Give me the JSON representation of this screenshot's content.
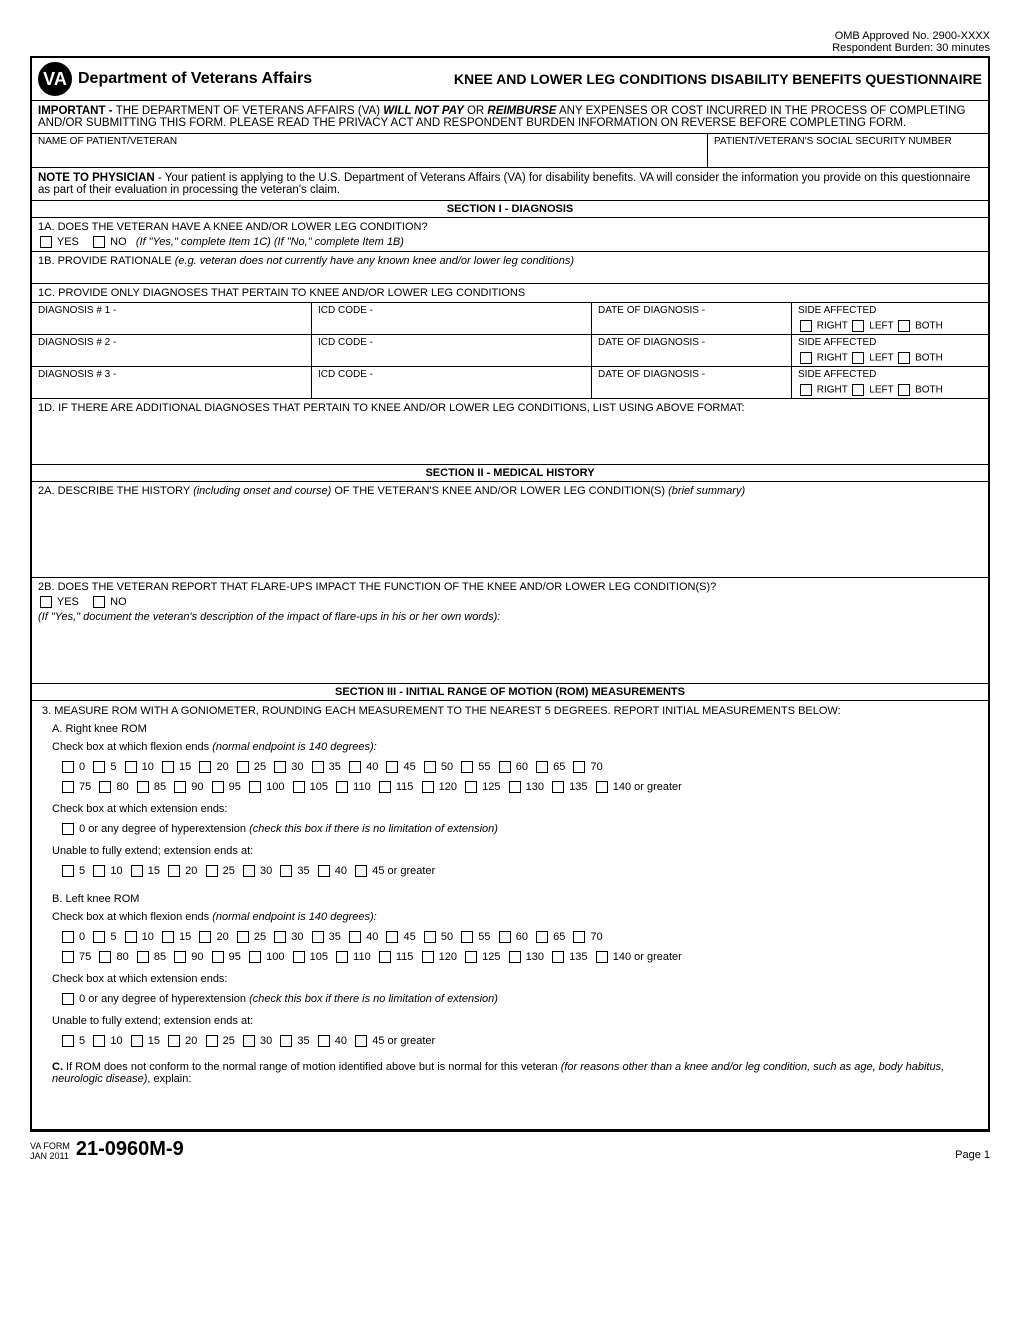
{
  "omb": {
    "approved": "OMB Approved No. 2900-XXXX",
    "burden": "Respondent Burden: 30 minutes"
  },
  "header": {
    "dept": "Department of Veterans Affairs",
    "title": "KNEE AND LOWER LEG CONDITIONS DISABILITY BENEFITS QUESTIONNAIRE"
  },
  "important": {
    "label": "IMPORTANT - ",
    "part1": "THE DEPARTMENT OF VETERANS AFFAIRS (VA) ",
    "bold1": "WILL NOT PAY",
    "or": " OR ",
    "bold2": "REIMBURSE",
    "part2": " ANY EXPENSES OR COST INCURRED IN THE PROCESS OF COMPLETING AND/OR SUBMITTING THIS FORM. PLEASE READ THE PRIVACY ACT AND RESPONDENT BURDEN INFORMATION ON REVERSE BEFORE COMPLETING FORM."
  },
  "nameRow": {
    "name": "NAME OF PATIENT/VETERAN",
    "ssn": "PATIENT/VETERAN'S SOCIAL SECURITY NUMBER"
  },
  "note": {
    "label": "NOTE TO PHYSICIAN",
    "text": " - Your patient is applying to the U.S. Department of Veterans Affairs (VA) for disability benefits. VA will consider the information you provide on this questionnaire as part of their evaluation in processing the veteran's claim."
  },
  "section1": {
    "header": "SECTION I - DIAGNOSIS",
    "q1a": "1A. DOES THE VETERAN HAVE A KNEE AND/OR LOWER LEG CONDITION?",
    "yes": "YES",
    "no": "NO",
    "q1a_hint": "(If \"Yes,\" complete Item 1C)   (If \"No,\" complete Item 1B)",
    "q1b": "1B. PROVIDE RATIONALE ",
    "q1b_hint": "(e.g. veteran does not currently have any known knee and/or lower leg conditions)",
    "q1c": "1C. PROVIDE ONLY DIAGNOSES THAT PERTAIN TO KNEE AND/OR LOWER LEG CONDITIONS",
    "diag_label": "DIAGNOSIS # ",
    "icd": "ICD CODE - ",
    "date": "DATE OF DIAGNOSIS - ",
    "side": "SIDE AFFECTED",
    "right": "RIGHT",
    "left": "LEFT",
    "both": "BOTH",
    "q1d": "1D. IF THERE ARE ADDITIONAL DIAGNOSES THAT PERTAIN TO KNEE AND/OR LOWER LEG CONDITIONS, LIST USING ABOVE FORMAT:"
  },
  "section2": {
    "header": "SECTION II - MEDICAL HISTORY",
    "q2a_1": "2A. DESCRIBE THE HISTORY ",
    "q2a_hint": "(including onset and course)",
    "q2a_2": " OF THE VETERAN'S KNEE AND/OR LOWER LEG CONDITION(S) ",
    "q2a_hint2": "(brief summary)",
    "q2b": "2B. DOES THE VETERAN REPORT THAT FLARE-UPS IMPACT THE FUNCTION OF THE KNEE AND/OR LOWER LEG CONDITION(S)?",
    "q2b_hint": "(If \"Yes,\" document the veteran's description of the impact of flare-ups in his or her own words):"
  },
  "section3": {
    "header": "SECTION III - INITIAL RANGE OF MOTION (ROM) MEASUREMENTS",
    "q3": "3. MEASURE ROM WITH A GONIOMETER, ROUNDING EACH MEASUREMENT TO THE NEAREST 5 DEGREES. REPORT INITIAL MEASUREMENTS BELOW:",
    "a": "A. Right knee ROM",
    "b": "B. Left knee ROM",
    "flex_label": "Check box at which flexion ends ",
    "flex_hint": "(normal endpoint is 140 degrees):",
    "flex_values": [
      "0",
      "5",
      "10",
      "15",
      "20",
      "25",
      "30",
      "35",
      "40",
      "45",
      "50",
      "55",
      "60",
      "65",
      "70",
      "75",
      "80",
      "85",
      "90",
      "95",
      "100",
      "105",
      "110",
      "115",
      "120",
      "125",
      "130",
      "135",
      "140 or greater"
    ],
    "ext_label": "Check box at which extension ends:",
    "hyper": "0 or any degree of hyperextension ",
    "hyper_hint": "(check this box if there is no limitation of extension)",
    "unable": "Unable to fully extend; extension ends at:",
    "ext_values": [
      "5",
      "10",
      "15",
      "20",
      "25",
      "30",
      "35",
      "40",
      "45 or greater"
    ],
    "c_1": "C.",
    "c_2": " If ROM does not conform to the normal range of motion identified above but is normal for this veteran ",
    "c_hint": "(for reasons other than a knee and/or leg condition, such as age, body habitus, neurologic disease)",
    "c_3": ", explain:"
  },
  "footer": {
    "va_form": "VA FORM",
    "date": "JAN 2011",
    "num": "21-0960M-9",
    "page": "Page 1"
  }
}
